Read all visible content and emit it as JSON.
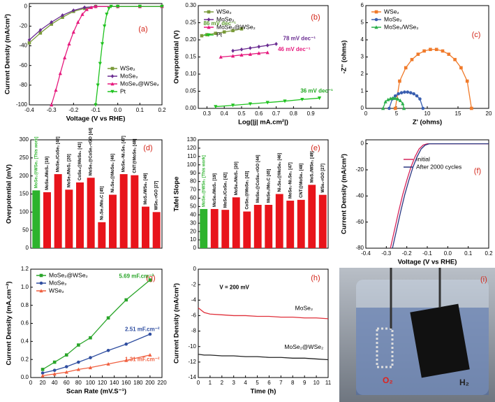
{
  "chart_data": [
    {
      "type": "line",
      "panel_label": "(a)",
      "xlabel": "Voltage (V vs RHE)",
      "ylabel": "Current Density (mA/cm²)",
      "xlim": [
        -0.4,
        0.2
      ],
      "ylim": [
        -100,
        3
      ],
      "xticks": [
        -0.4,
        -0.3,
        -0.2,
        -0.1,
        {
          "value": 0,
          "label": "0.0"
        },
        0.1,
        0.2
      ],
      "yticks": [
        0,
        -20,
        -40,
        -60,
        -80,
        -100
      ],
      "legend": "lower right",
      "series": [
        {
          "name": "WSe₂",
          "color": "#7a9a3a",
          "marker": "square",
          "x": [
            -0.4,
            -0.35,
            -0.3,
            -0.25,
            -0.2,
            -0.15,
            -0.1,
            0,
            0.1,
            0.2
          ],
          "values": [
            -37,
            -27,
            -18,
            -11,
            -5,
            -2,
            0,
            0,
            0,
            0
          ]
        },
        {
          "name": "MoSe₂",
          "color": "#6a2c91",
          "marker": "diamond",
          "x": [
            -0.4,
            -0.35,
            -0.3,
            -0.25,
            -0.2,
            -0.15,
            -0.1,
            0,
            0.1,
            0.2
          ],
          "values": [
            -34,
            -24,
            -16,
            -9,
            -4,
            -1,
            0,
            0,
            0,
            0
          ]
        },
        {
          "name": "MoSe₂@WSe₂",
          "color": "#e6197d",
          "marker": "triangle",
          "x": [
            -0.3,
            -0.28,
            -0.26,
            -0.24,
            -0.22,
            -0.2,
            -0.18,
            -0.16,
            -0.14,
            -0.12,
            -0.1,
            0,
            0.1,
            0.2
          ],
          "values": [
            -100,
            -85,
            -68,
            -52,
            -38,
            -26,
            -16,
            -8,
            -3,
            -1,
            0,
            0,
            0,
            0
          ]
        },
        {
          "name": "Pt",
          "color": "#1fc21f",
          "marker": "tridown",
          "x": [
            -0.1,
            -0.09,
            -0.08,
            -0.07,
            -0.06,
            -0.05,
            -0.04,
            -0.03,
            0,
            0.1,
            0.2
          ],
          "values": [
            -100,
            -80,
            -58,
            -38,
            -20,
            -8,
            -2,
            0,
            0,
            0,
            0
          ]
        }
      ]
    },
    {
      "type": "line",
      "panel_label": "(b)",
      "xlabel": "Log(|j| mA.cm²|)",
      "ylabel": "Overpotential (V)",
      "xlim": [
        0.25,
        1.0
      ],
      "ylim": [
        0,
        0.3
      ],
      "xticks": [
        0.3,
        0.4,
        0.5,
        0.6,
        0.7,
        0.8,
        0.9
      ],
      "yticks": [
        {
          "value": 0,
          "label": "0.00"
        },
        {
          "value": 0.05,
          "label": "0.05"
        },
        {
          "value": 0.1,
          "label": "0.10"
        },
        {
          "value": 0.15,
          "label": "0.15"
        },
        {
          "value": 0.2,
          "label": "0.20"
        },
        {
          "value": 0.25,
          "label": "0.25"
        },
        {
          "value": 0.3,
          "label": "0.30"
        }
      ],
      "legend": "upper left",
      "series": [
        {
          "name": "WSe₂",
          "color": "#7a9a3a",
          "marker": "square",
          "x": [
            0.27,
            0.3,
            0.35,
            0.4,
            0.45,
            0.5
          ],
          "values": [
            0.212,
            0.215,
            0.219,
            0.223,
            0.227,
            0.232
          ]
        },
        {
          "name": "MoSe₂",
          "color": "#6a2c91",
          "marker": "diamond",
          "x": [
            0.45,
            0.5,
            0.55,
            0.6,
            0.65,
            0.7
          ],
          "values": [
            0.168,
            0.172,
            0.176,
            0.18,
            0.184,
            0.188
          ]
        },
        {
          "name": "MoSe₂@WSe₂",
          "color": "#e6197d",
          "marker": "triangle",
          "x": [
            0.38,
            0.45,
            0.5,
            0.55,
            0.6,
            0.65
          ],
          "values": [
            0.15,
            0.153,
            0.156,
            0.158,
            0.161,
            0.163
          ]
        },
        {
          "name": "Pt",
          "color": "#1fc21f",
          "marker": "tridown",
          "x": [
            0.35,
            0.45,
            0.55,
            0.65,
            0.75,
            0.85,
            0.95
          ],
          "values": [
            0.005,
            0.009,
            0.013,
            0.017,
            0.021,
            0.026,
            0.03
          ]
        }
      ],
      "annotations": [
        {
          "text": "86 mV dec⁻¹",
          "color": "#5a9a2a"
        },
        {
          "text": "78 mV dec⁻¹",
          "color": "#6a2c91"
        },
        {
          "text": "46 mV dec⁻¹",
          "color": "#e6197d"
        },
        {
          "text": "36 mV dec⁻¹",
          "color": "#1fa81f"
        }
      ]
    },
    {
      "type": "line",
      "panel_label": "(c)",
      "xlabel": "Z' (ohms)",
      "ylabel": "-Z'' (ohms)",
      "xlim": [
        0,
        20
      ],
      "ylim": [
        0,
        6
      ],
      "xticks": [
        0,
        5,
        10,
        15,
        20
      ],
      "yticks": [
        0,
        1,
        2,
        3,
        4,
        5,
        6
      ],
      "legend": "upper left",
      "series": [
        {
          "name": "WSe₂",
          "color": "#f07a2a",
          "marker": "square",
          "x": [
            4.8,
            5.5,
            6.5,
            7.5,
            8.5,
            9.5,
            10.5,
            11.5,
            12.5,
            13.5,
            14.5,
            15.5,
            16.5,
            17.2
          ],
          "values": [
            0,
            1.59,
            2.37,
            2.85,
            3.16,
            3.35,
            3.44,
            3.44,
            3.35,
            3.16,
            2.85,
            2.37,
            1.59,
            0
          ]
        },
        {
          "name": "MoSe₂",
          "color": "#3a5fb0",
          "marker": "circle",
          "x": [
            3.8,
            4.3,
            4.8,
            5.3,
            5.8,
            6.3,
            6.8,
            7.3,
            7.8,
            8.3,
            8.8,
            9.3
          ],
          "values": [
            0,
            0.55,
            0.73,
            0.85,
            0.91,
            0.95,
            0.95,
            0.91,
            0.85,
            0.73,
            0.55,
            0
          ]
        },
        {
          "name": "MoSe₂/WSe₂",
          "color": "#2bb04a",
          "marker": "triangle",
          "x": [
            2.8,
            3.2,
            3.6,
            4.0,
            4.4,
            4.8,
            5.2,
            5.6,
            6.0,
            6.2
          ],
          "values": [
            0,
            0.39,
            0.51,
            0.57,
            0.6,
            0.59,
            0.55,
            0.46,
            0.28,
            0
          ]
        }
      ]
    },
    {
      "type": "bar",
      "panel_label": "(d)",
      "ylabel": "Overpotential (mV)",
      "ylim": [
        0,
        300
      ],
      "yticks": [
        0,
        50,
        100,
        150,
        200,
        250,
        300
      ],
      "categories": [
        "MoSe₂@WSe₂ [This work]",
        "MoSe₂/MoS₂ [19]",
        "MoSe₂/CoSe₂ [42]",
        "MoSe₂/MoS₂ [20]",
        "CoSe₂@MoSe₂ [43]",
        "MoSe₂@CoSe₂-rGO [44]",
        "Ni₃Se₂/Mo₂C [45]",
        "Ni₃Se₂@MoSe₂ [46]",
        "MoSe₂-Ni₃Se₂ [47]",
        "CNT@MoSe₂ [48]",
        "MoS₂/WSe₂ [49]",
        "WSe₂-rGO [27]"
      ],
      "values": [
        160,
        155,
        205,
        162,
        182,
        195,
        72,
        148,
        205,
        202,
        115,
        100
      ],
      "colors": [
        "#2db32d",
        "#e8141b",
        "#e8141b",
        "#e8141b",
        "#e8141b",
        "#e8141b",
        "#e8141b",
        "#e8141b",
        "#e8141b",
        "#e8141b",
        "#e8141b",
        "#e8141b"
      ]
    },
    {
      "type": "bar",
      "panel_label": "(e)",
      "ylabel": "Tafel Slope",
      "ylim": [
        0,
        130
      ],
      "yticks": [
        0,
        10,
        20,
        30,
        40,
        50,
        60,
        70,
        80,
        90,
        100,
        110,
        120,
        130
      ],
      "categories": [
        "MoSe₂@WSe₂ [This work]",
        "MoSe₂/MoS₂ [19]",
        "MoSe₂/CoSe₂ [42]",
        "MoSe₂/MoS₂ [20]",
        "CoSe₂@MoSe₂ [43]",
        "MoSe₂@CoSe₂-rGO [44]",
        "MoSe₂/Mo₂C [45]",
        "Ni₃Se₂@MoSe₂ [46]",
        "MoSe₂-Ni₃Se₂ [47]",
        "CNT@MoSe₂ [48]",
        "MoS₂/WSe₂ [49]",
        "WSe₂-rGO [27]"
      ],
      "values": [
        47,
        47,
        46,
        61,
        44,
        52,
        52,
        65,
        57,
        58,
        76,
        64
      ],
      "colors": [
        "#2db32d",
        "#e8141b",
        "#e8141b",
        "#e8141b",
        "#e8141b",
        "#e8141b",
        "#e8141b",
        "#e8141b",
        "#e8141b",
        "#e8141b",
        "#e8141b",
        "#e8141b"
      ]
    },
    {
      "type": "line",
      "panel_label": "(f)",
      "xlabel": "Voltage (V vs RHE)",
      "ylabel": "Current Density (mA/cm²)",
      "xlim": [
        -0.4,
        0.2
      ],
      "ylim": [
        -80,
        3
      ],
      "xticks": [
        -0.4,
        -0.3,
        -0.2,
        -0.1,
        {
          "value": 0,
          "label": "0.0"
        },
        0.1,
        0.2
      ],
      "yticks": [
        0,
        -20,
        -40,
        -60,
        -80
      ],
      "legend": "center right",
      "series": [
        {
          "name": "Initial",
          "color": "#d6245a",
          "marker": "none",
          "x": [
            -0.28,
            -0.26,
            -0.24,
            -0.22,
            -0.2,
            -0.18,
            -0.16,
            -0.14,
            -0.12,
            -0.1,
            0,
            0.1,
            0.2
          ],
          "values": [
            -80,
            -66,
            -52,
            -39,
            -28,
            -18,
            -10,
            -4,
            -1,
            0,
            0,
            0,
            0
          ]
        },
        {
          "name": "After 2000 cycles",
          "color": "#2a3580",
          "marker": "none",
          "x": [
            -0.27,
            -0.25,
            -0.23,
            -0.21,
            -0.19,
            -0.17,
            -0.15,
            -0.13,
            -0.11,
            -0.09,
            0,
            0.1,
            0.2
          ],
          "values": [
            -80,
            -66,
            -52,
            -39,
            -28,
            -18,
            -10,
            -4,
            -1,
            0,
            0,
            0,
            0
          ]
        }
      ]
    },
    {
      "type": "line",
      "panel_label": "(g)",
      "xlabel": "Scan Rate (mV.S⁻¹)",
      "ylabel": "Current Density (mA.cm⁻²)",
      "xlim": [
        0,
        220
      ],
      "ylim": [
        0,
        1.2
      ],
      "xticks": [
        0,
        20,
        40,
        60,
        80,
        100,
        120,
        140,
        160,
        180,
        200,
        220
      ],
      "yticks": [
        {
          "value": 0,
          "label": "0.0"
        },
        0.2,
        0.4,
        0.6,
        0.8,
        {
          "value": 1,
          "label": "1.0"
        },
        1.2
      ],
      "legend": "upper left",
      "series": [
        {
          "name": "MoSe₂@WSe₂",
          "color": "#2aa52a",
          "marker": "square",
          "x": [
            20,
            40,
            60,
            80,
            100,
            130,
            160,
            200
          ],
          "values": [
            0.09,
            0.17,
            0.25,
            0.36,
            0.44,
            0.66,
            0.86,
            1.08
          ]
        },
        {
          "name": "MoSe₂",
          "color": "#2f4ea0",
          "marker": "circle",
          "x": [
            20,
            40,
            60,
            80,
            100,
            130,
            160,
            200
          ],
          "values": [
            0.05,
            0.08,
            0.12,
            0.17,
            0.22,
            0.3,
            0.37,
            0.48
          ]
        },
        {
          "name": "WSe₂",
          "color": "#f06040",
          "marker": "triangle",
          "x": [
            20,
            40,
            60,
            80,
            100,
            130,
            160,
            200
          ],
          "values": [
            0.02,
            0.04,
            0.06,
            0.09,
            0.11,
            0.15,
            0.19,
            0.25
          ]
        }
      ],
      "annotations": [
        {
          "text": "5.69 mF.cm⁻²",
          "color": "#2aa52a"
        },
        {
          "text": "2.51 mF.cm⁻²",
          "color": "#2f4ea0"
        },
        {
          "text": "1.31 mF.cm⁻²",
          "color": "#f06040"
        }
      ]
    },
    {
      "type": "line",
      "panel_label": "(h)",
      "xlabel": "Time (h)",
      "ylabel": "Current Density (mA/cm²)",
      "xlim": [
        0,
        11
      ],
      "ylim": [
        -14,
        0
      ],
      "xticks": [
        0,
        1,
        2,
        3,
        4,
        5,
        6,
        7,
        8,
        9,
        10,
        11
      ],
      "yticks": [
        0,
        -2,
        -4,
        -6,
        -8,
        -10,
        -12,
        -14
      ],
      "legend": "inline",
      "series": [
        {
          "name": "MoSe₂",
          "color": "#e0303a",
          "marker": "none",
          "x": [
            0,
            0.5,
            1,
            2,
            3,
            4,
            5,
            6,
            7,
            8,
            9,
            10,
            11
          ],
          "values": [
            -5.0,
            -5.6,
            -5.8,
            -5.9,
            -6.0,
            -6.0,
            -6.1,
            -6.1,
            -6.2,
            -6.2,
            -6.3,
            -6.3,
            -6.4
          ]
        },
        {
          "name": "MoSe₂@WSe₂",
          "color": "#222222",
          "marker": "none",
          "x": [
            0,
            0.5,
            1,
            2,
            3,
            4,
            5,
            6,
            7,
            8,
            9,
            10,
            11
          ],
          "values": [
            -11.0,
            -11.1,
            -11.1,
            -11.2,
            -11.2,
            -11.3,
            -11.3,
            -11.4,
            -11.4,
            -11.5,
            -11.5,
            -11.6,
            -11.7
          ]
        }
      ],
      "annotations": [
        {
          "text": "V = 200 mV",
          "color": "#000000"
        }
      ]
    }
  ],
  "photo": {
    "panel_label": "(i)",
    "gas_labels": [
      "O₂",
      "H₂"
    ]
  }
}
